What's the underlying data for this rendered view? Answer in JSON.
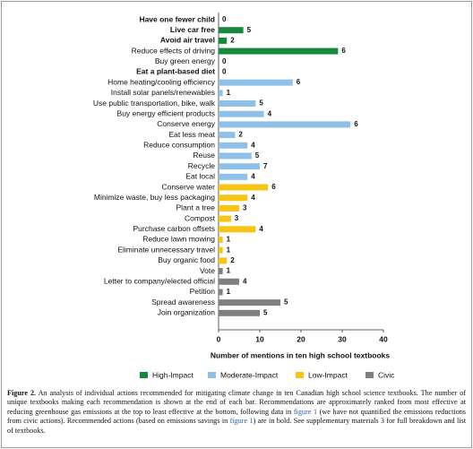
{
  "chart_data": {
    "type": "bar",
    "orientation": "horizontal",
    "x_label": "Number of mentions in ten high school textbooks",
    "xlim": [
      0,
      40
    ],
    "xticks": [
      0,
      10,
      20,
      30,
      40
    ],
    "series": [
      {
        "name": "High-Impact",
        "color": "#16893c",
        "categories": [
          "Have one fewer child",
          "Live car free",
          "Avoid air travel",
          "Reduce effects of driving",
          "Buy green energy",
          "Eat a plant-based diet"
        ],
        "bold": [
          true,
          true,
          true,
          false,
          false,
          true
        ],
        "values": [
          0,
          6,
          2,
          29,
          0,
          0
        ],
        "textbooks": [
          0,
          5,
          2,
          6,
          0,
          0
        ]
      },
      {
        "name": "Moderate-Impact",
        "color": "#8fc1e8",
        "categories": [
          "Home heating/cooling efficiency",
          "Install solar panels/renewables",
          "Use public transportation, bike, walk",
          "Buy energy efficient products",
          "Conserve energy",
          "Eat less meat",
          "Reduce consumption",
          "Reuse",
          "Recycle",
          "Eat local"
        ],
        "bold": [
          false,
          false,
          false,
          false,
          false,
          false,
          false,
          false,
          false,
          false
        ],
        "values": [
          18,
          1,
          9,
          11,
          32,
          4,
          7,
          8,
          10,
          7
        ],
        "textbooks": [
          6,
          1,
          5,
          4,
          6,
          2,
          4,
          5,
          7,
          4
        ]
      },
      {
        "name": "Low-Impact",
        "color": "#f6c515",
        "categories": [
          "Conserve water",
          "Minimize waste, buy less packaging",
          "Plant a tree",
          "Compost",
          "Purchase carbon offsets",
          "Reduce lawn mowing",
          "Eliminate unnecessary travel",
          "Buy organic food"
        ],
        "bold": [
          false,
          false,
          false,
          false,
          false,
          false,
          false,
          false
        ],
        "values": [
          12,
          7,
          5,
          3,
          9,
          1,
          1,
          2
        ],
        "textbooks": [
          6,
          4,
          3,
          3,
          4,
          1,
          1,
          2
        ]
      },
      {
        "name": "Civic",
        "color": "#7f7f7f",
        "categories": [
          "Vote",
          "Letter to company/elected official",
          "Petition",
          "Spread awareness",
          "Join organization"
        ],
        "bold": [
          false,
          false,
          false,
          false,
          false
        ],
        "values": [
          1,
          5,
          1,
          15,
          10
        ],
        "textbooks": [
          1,
          4,
          1,
          5,
          5
        ]
      }
    ]
  },
  "caption": {
    "label": "Figure 2.",
    "parts": [
      "An analysis of individual actions recommended for mitigating climate change in ten Canadian high school science textbooks. The number of unique textbooks making each recommendation is shown at the end of each bar. Recommendations are approximately ranked from most effective at reducing greenhouse gas emissions at the top to least effective at the bottom, following data in ",
      "figure 1",
      " (we have not quantified the emissions reductions from civic actions). Recommended actions (based on emissions savings in ",
      "figure 1",
      ") are in bold. See supplementary materials 3 for full breakdown and list of textbooks."
    ]
  }
}
